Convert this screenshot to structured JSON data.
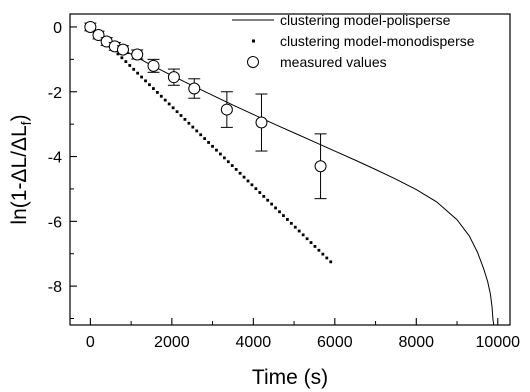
{
  "chart_data": {
    "type": "scatter",
    "xlabel": "Time (s)",
    "ylabel": "ln(1-ΔL/ΔL",
    "ylabel_subscript": "f",
    "ylabel_suffix": ")",
    "xlim": [
      -500,
      10300
    ],
    "ylim": [
      -9.2,
      0.4
    ],
    "xticks": [
      0,
      2000,
      4000,
      6000,
      8000,
      10000
    ],
    "xtick_labels": [
      "0",
      "2000",
      "4000",
      "6000",
      "8000",
      "10000"
    ],
    "xticks_minor": [
      1000,
      3000,
      5000,
      7000,
      9000
    ],
    "yticks": [
      0,
      -2,
      -4,
      -6,
      -8
    ],
    "ytick_labels": [
      "0",
      "-2",
      "-4",
      "-6",
      "-8"
    ],
    "yticks_minor": [
      -1,
      -3,
      -5,
      -7,
      -9
    ],
    "legend_position": "top-right",
    "series": [
      {
        "name": "clustering model-polisperse",
        "style": "line",
        "color": "#000000",
        "x": [
          0,
          250,
          500,
          750,
          1000,
          1500,
          2000,
          2500,
          3000,
          3500,
          4000,
          4500,
          5000,
          5500,
          6000,
          6500,
          7000,
          7500,
          8000,
          8500,
          9000,
          9300,
          9500,
          9650,
          9750,
          9820,
          9860,
          9880,
          9900
        ],
        "y": [
          0,
          -0.27,
          -0.47,
          -0.66,
          -0.84,
          -1.18,
          -1.5,
          -1.81,
          -2.11,
          -2.41,
          -2.7,
          -2.99,
          -3.27,
          -3.55,
          -3.83,
          -4.11,
          -4.4,
          -4.7,
          -5.02,
          -5.4,
          -5.95,
          -6.45,
          -6.95,
          -7.45,
          -7.85,
          -8.25,
          -8.65,
          -9.0,
          -9.2
        ]
      },
      {
        "name": "clustering model-monodisperse",
        "style": "dotted",
        "color": "#000000",
        "x": [
          0,
          5900
        ],
        "y": [
          0,
          -7.25
        ],
        "points": 62
      },
      {
        "name": "measured values",
        "style": "markers",
        "color": "#000000",
        "x": [
          0,
          200,
          400,
          600,
          800,
          1150,
          1550,
          2050,
          2550,
          3350,
          4200,
          5650
        ],
        "y": [
          0,
          -0.25,
          -0.45,
          -0.6,
          -0.7,
          -0.85,
          -1.2,
          -1.55,
          -1.9,
          -2.55,
          -2.95,
          -4.3
        ],
        "err": [
          0.12,
          0.12,
          0.12,
          0.12,
          0.12,
          0.14,
          0.2,
          0.25,
          0.3,
          0.55,
          0.88,
          1.0
        ]
      }
    ]
  }
}
